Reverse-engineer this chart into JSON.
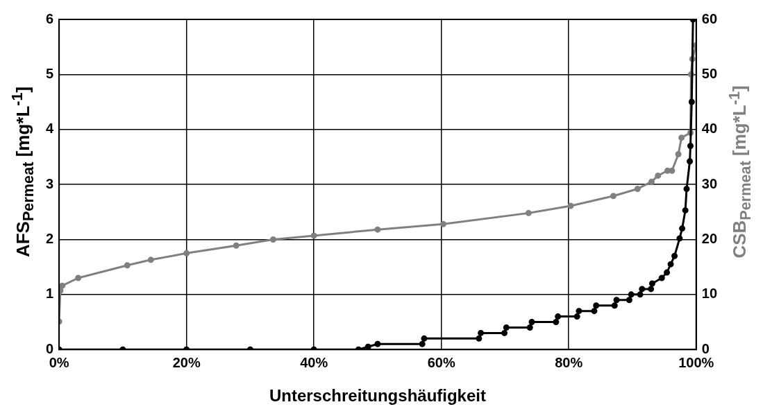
{
  "chart_data": {
    "type": "line",
    "xlabel": "Unterschreitungshäufigkeit",
    "ylabel": "AFS$_{Permeat}$  [mg*L$^{-1}$]",
    "y2label": "CSB$_{Permeat}$  [mg*L$^{-1}$]",
    "xlim": [
      0,
      100
    ],
    "xticks": [
      {
        "value": 0,
        "label": "0%"
      },
      {
        "value": 20,
        "label": "20%"
      },
      {
        "value": 40,
        "label": "40%"
      },
      {
        "value": 60,
        "label": "60%"
      },
      {
        "value": 80,
        "label": "80%"
      },
      {
        "value": 100,
        "label": "100%"
      }
    ],
    "ylim": [
      0,
      6
    ],
    "yticks": [
      0,
      1,
      2,
      3,
      4,
      5,
      6
    ],
    "y2lim": [
      0,
      60
    ],
    "y2ticks": [
      0,
      10,
      20,
      30,
      40,
      50,
      60
    ],
    "grid": true,
    "legend": false,
    "marker": "circle",
    "line_style": "solid",
    "series": [
      {
        "color": "#000000",
        "x": [
          0,
          10,
          20,
          30,
          40,
          47,
          48.5,
          50,
          57,
          57.3,
          65.9,
          66.2,
          69.9,
          70.2,
          73.9,
          74.2,
          78,
          78.3,
          81.3,
          81.6,
          84,
          84.3,
          87.2,
          87.5,
          89.5,
          89.8,
          91.2,
          91.5,
          92.9,
          93.1,
          94.6,
          95.4,
          96,
          96.6,
          97.4,
          97.8,
          98.3,
          98.5,
          99,
          99.1,
          99.3,
          99.5
        ],
        "values": [
          0,
          0,
          0,
          0,
          0,
          0,
          0.05,
          0.1,
          0.1,
          0.2,
          0.2,
          0.3,
          0.3,
          0.4,
          0.4,
          0.5,
          0.5,
          0.6,
          0.6,
          0.7,
          0.7,
          0.8,
          0.8,
          0.9,
          0.9,
          1.0,
          1.0,
          1.1,
          1.1,
          1.2,
          1.3,
          1.4,
          1.55,
          1.7,
          2.02,
          2.2,
          2.53,
          2.92,
          3.42,
          3.7,
          4.5,
          6
        ]
      },
      {
        "color": "#808080",
        "axis": "y2",
        "x": [
          0,
          0.2,
          0.5,
          3,
          10.7,
          14.4,
          20,
          27.8,
          33.6,
          40,
          50,
          60.3,
          73.7,
          80.3,
          87,
          90.8,
          93,
          94,
          95.5,
          96.2,
          97.2,
          97.7,
          99.1,
          99.2,
          99.4,
          100
        ],
        "values": [
          5.1,
          10.7,
          11.6,
          13,
          15.3,
          16.3,
          17.5,
          18.9,
          20,
          20.7,
          21.8,
          22.8,
          24.8,
          26.1,
          27.9,
          29.2,
          30.5,
          31.6,
          32.5,
          32.5,
          35.5,
          38.5,
          39.4,
          50,
          52.8,
          55.3
        ]
      }
    ]
  }
}
